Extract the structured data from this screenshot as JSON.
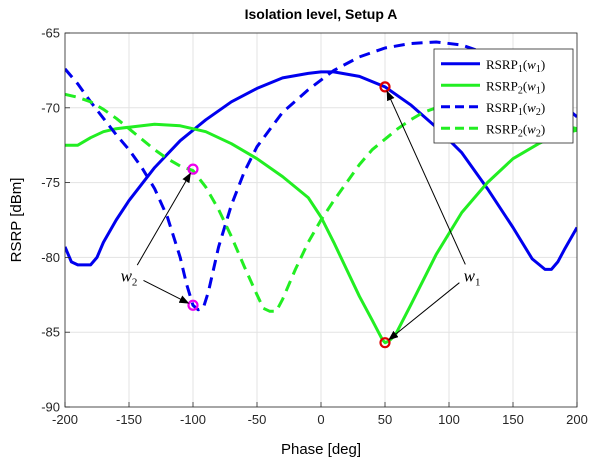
{
  "chart_data": {
    "type": "line",
    "title": "Isolation level, Setup A",
    "xlabel": "Phase [deg]",
    "ylabel": "RSRP [dBm]",
    "xlim": [
      -200,
      200
    ],
    "ylim": [
      -90,
      -65
    ],
    "xticks": [
      "-200",
      "-150",
      "-100",
      "-50",
      "0",
      "50",
      "100",
      "150",
      "200"
    ],
    "yticks": [
      "-65",
      "-70",
      "-75",
      "-80",
      "-85",
      "-90"
    ],
    "grid": true,
    "legend_position": "top-right",
    "series": [
      {
        "name": "RSRP1(w1)",
        "label_main": "RSRP",
        "label_sub1": "1",
        "label_arg": "w",
        "label_sub2": "1",
        "color": "#0000ee",
        "style": "solid",
        "points": [
          [
            -200,
            -79.3
          ],
          [
            -195,
            -80.3
          ],
          [
            -190,
            -80.5
          ],
          [
            -180,
            -80.5
          ],
          [
            -175,
            -80.0
          ],
          [
            -170,
            -79.0
          ],
          [
            -160,
            -77.5
          ],
          [
            -150,
            -76.2
          ],
          [
            -130,
            -74.0
          ],
          [
            -110,
            -72.2
          ],
          [
            -90,
            -70.8
          ],
          [
            -70,
            -69.6
          ],
          [
            -50,
            -68.7
          ],
          [
            -30,
            -68.0
          ],
          [
            -10,
            -67.7
          ],
          [
            0,
            -67.6
          ],
          [
            10,
            -67.6
          ],
          [
            30,
            -67.9
          ],
          [
            50,
            -68.6
          ],
          [
            70,
            -69.8
          ],
          [
            90,
            -71.3
          ],
          [
            110,
            -73.0
          ],
          [
            130,
            -75.4
          ],
          [
            150,
            -78.0
          ],
          [
            165,
            -80.1
          ],
          [
            175,
            -80.8
          ],
          [
            180,
            -80.8
          ],
          [
            185,
            -80.3
          ],
          [
            190,
            -79.5
          ],
          [
            200,
            -78.0
          ]
        ]
      },
      {
        "name": "RSRP2(w1)",
        "label_main": "RSRP",
        "label_sub1": "2",
        "label_arg": "w",
        "label_sub2": "1",
        "color": "#22ee22",
        "style": "solid",
        "points": [
          [
            -200,
            -72.5
          ],
          [
            -190,
            -72.5
          ],
          [
            -180,
            -72.0
          ],
          [
            -170,
            -71.6
          ],
          [
            -160,
            -71.4
          ],
          [
            -150,
            -71.3
          ],
          [
            -140,
            -71.2
          ],
          [
            -130,
            -71.1
          ],
          [
            -110,
            -71.2
          ],
          [
            -90,
            -71.6
          ],
          [
            -70,
            -72.4
          ],
          [
            -50,
            -73.4
          ],
          [
            -30,
            -74.6
          ],
          [
            -10,
            -76.0
          ],
          [
            0,
            -77.3
          ],
          [
            10,
            -79.0
          ],
          [
            20,
            -80.8
          ],
          [
            30,
            -82.6
          ],
          [
            40,
            -84.2
          ],
          [
            48,
            -85.5
          ],
          [
            50,
            -85.7
          ],
          [
            53,
            -85.6
          ],
          [
            58,
            -85.2
          ],
          [
            70,
            -83.2
          ],
          [
            90,
            -79.8
          ],
          [
            110,
            -77.0
          ],
          [
            130,
            -75.0
          ],
          [
            150,
            -73.4
          ],
          [
            170,
            -72.4
          ],
          [
            185,
            -71.8
          ],
          [
            200,
            -71.5
          ]
        ]
      },
      {
        "name": "RSRP1(w2)",
        "label_main": "RSRP",
        "label_sub1": "1",
        "label_arg": "w",
        "label_sub2": "2",
        "color": "#0000ee",
        "style": "dashed",
        "points": [
          [
            -200,
            -67.4
          ],
          [
            -190,
            -68.4
          ],
          [
            -180,
            -69.6
          ],
          [
            -170,
            -70.7
          ],
          [
            -160,
            -71.8
          ],
          [
            -150,
            -72.8
          ],
          [
            -140,
            -74.0
          ],
          [
            -130,
            -75.4
          ],
          [
            -120,
            -77.3
          ],
          [
            -110,
            -80.0
          ],
          [
            -105,
            -81.8
          ],
          [
            -100,
            -83.2
          ],
          [
            -96,
            -83.5
          ],
          [
            -92,
            -83.4
          ],
          [
            -88,
            -82.3
          ],
          [
            -80,
            -79.3
          ],
          [
            -70,
            -76.5
          ],
          [
            -60,
            -74.3
          ],
          [
            -50,
            -72.6
          ],
          [
            -30,
            -70.3
          ],
          [
            -10,
            -68.8
          ],
          [
            10,
            -67.5
          ],
          [
            30,
            -66.6
          ],
          [
            50,
            -66.0
          ],
          [
            70,
            -65.7
          ],
          [
            90,
            -65.6
          ],
          [
            110,
            -65.8
          ],
          [
            130,
            -66.4
          ],
          [
            150,
            -67.3
          ],
          [
            170,
            -68.4
          ],
          [
            190,
            -69.9
          ],
          [
            200,
            -70.6
          ]
        ]
      },
      {
        "name": "RSRP2(w2)",
        "label_main": "RSRP",
        "label_sub1": "2",
        "label_arg": "w",
        "label_sub2": "2",
        "color": "#22ee22",
        "style": "dashed",
        "points": [
          [
            -200,
            -69.1
          ],
          [
            -190,
            -69.3
          ],
          [
            -180,
            -69.6
          ],
          [
            -170,
            -70.1
          ],
          [
            -160,
            -70.7
          ],
          [
            -150,
            -71.4
          ],
          [
            -140,
            -72.1
          ],
          [
            -130,
            -72.8
          ],
          [
            -120,
            -73.4
          ],
          [
            -110,
            -73.9
          ],
          [
            -100,
            -74.2
          ],
          [
            -90,
            -75.3
          ],
          [
            -80,
            -76.8
          ],
          [
            -70,
            -78.6
          ],
          [
            -60,
            -80.6
          ],
          [
            -50,
            -82.5
          ],
          [
            -45,
            -83.4
          ],
          [
            -40,
            -83.6
          ],
          [
            -35,
            -83.6
          ],
          [
            -30,
            -82.8
          ],
          [
            -20,
            -80.8
          ],
          [
            -10,
            -79.0
          ],
          [
            0,
            -77.5
          ],
          [
            10,
            -76.2
          ],
          [
            20,
            -75.0
          ],
          [
            30,
            -73.8
          ],
          [
            40,
            -72.8
          ],
          [
            50,
            -72.1
          ],
          [
            60,
            -71.4
          ],
          [
            70,
            -70.8
          ],
          [
            80,
            -70.3
          ],
          [
            90,
            -70.0
          ],
          [
            100,
            -69.9
          ],
          [
            110,
            -69.9
          ],
          [
            120,
            -70.0
          ],
          [
            130,
            -70.2
          ],
          [
            150,
            -70.6
          ],
          [
            170,
            -70.9
          ],
          [
            190,
            -71.2
          ],
          [
            200,
            -71.4
          ]
        ]
      }
    ],
    "markers": [
      {
        "name": "w1-marker-rsrp1",
        "x": 50,
        "y": -68.6,
        "color": "#dd0000"
      },
      {
        "name": "w1-marker-rsrp2",
        "x": 50,
        "y": -85.7,
        "color": "#dd0000"
      },
      {
        "name": "w2-marker-rsrp2",
        "x": -100,
        "y": -74.1,
        "color": "#ee00ee"
      },
      {
        "name": "w2-marker-rsrp1",
        "x": -100,
        "y": -83.2,
        "color": "#ee00ee"
      }
    ],
    "annotations": [
      {
        "name": "w1",
        "text": "w",
        "sub": "1",
        "label_at": [
          118,
          -81.2
        ],
        "arrows_to": [
          [
            50,
            -68.6
          ],
          [
            50,
            -85.7
          ]
        ]
      },
      {
        "name": "w2",
        "text": "w",
        "sub": "2",
        "label_at": [
          -150,
          -81.2
        ],
        "arrows_to": [
          [
            -100,
            -74.1
          ],
          [
            -100,
            -83.2
          ]
        ]
      }
    ]
  }
}
